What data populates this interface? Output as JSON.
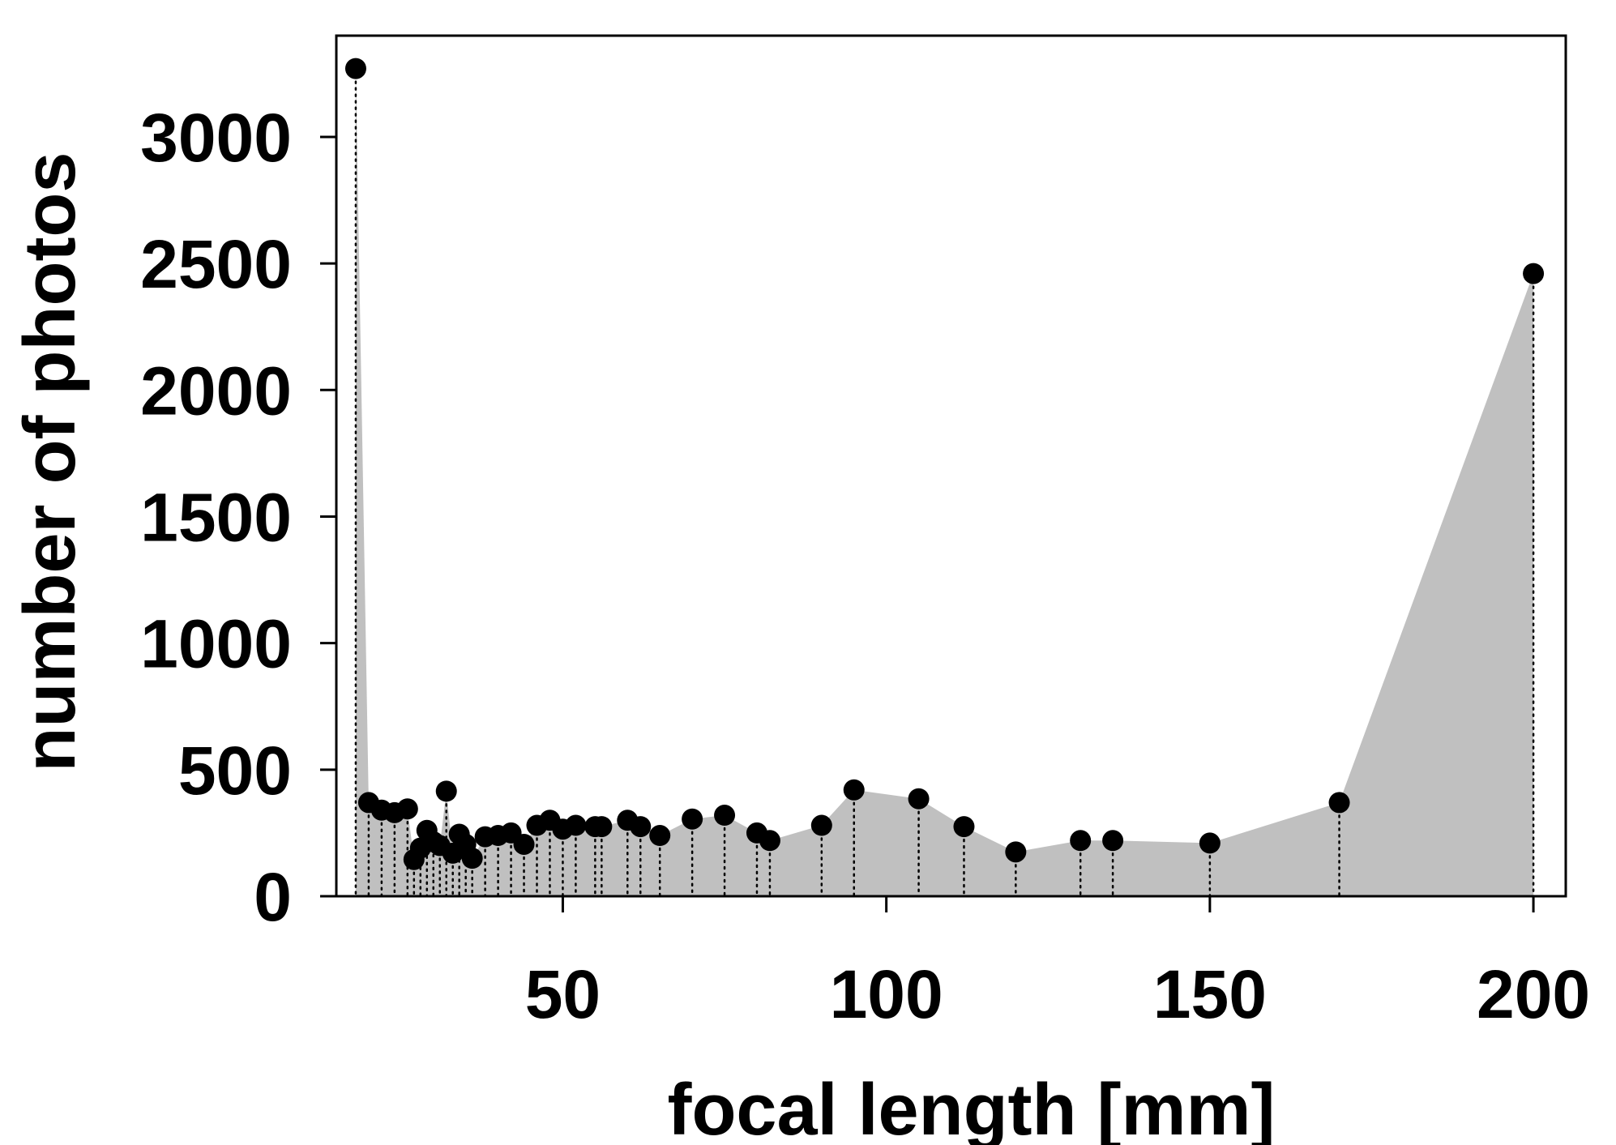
{
  "chart_data": {
    "type": "area",
    "title": "",
    "xlabel": "focal length [mm]",
    "ylabel": "number of photos",
    "xlim": [
      15,
      205
    ],
    "ylim": [
      0,
      3400
    ],
    "xticks": [
      50,
      100,
      150,
      200
    ],
    "yticks": [
      0,
      500,
      1000,
      1500,
      2000,
      2500,
      3000
    ],
    "grid": false,
    "legend": "none",
    "colors": {
      "fill": "#c0c0c0",
      "marker": "#000000",
      "stem": "#000000",
      "frame": "#000000"
    },
    "x": [
      18,
      20,
      22,
      24,
      26,
      27,
      28,
      29,
      30,
      31,
      32,
      33,
      34,
      35,
      36,
      38,
      40,
      42,
      44,
      46,
      48,
      50,
      52,
      55,
      56,
      60,
      62,
      65,
      70,
      75,
      80,
      82,
      90,
      95,
      105,
      112,
      120,
      130,
      135,
      150,
      170,
      200
    ],
    "values": [
      3270,
      370,
      340,
      330,
      345,
      145,
      190,
      260,
      215,
      200,
      415,
      170,
      245,
      205,
      150,
      235,
      240,
      250,
      205,
      280,
      300,
      265,
      280,
      275,
      275,
      300,
      275,
      240,
      305,
      320,
      250,
      220,
      280,
      420,
      385,
      275,
      175,
      220,
      220,
      210,
      370,
      2460
    ]
  }
}
